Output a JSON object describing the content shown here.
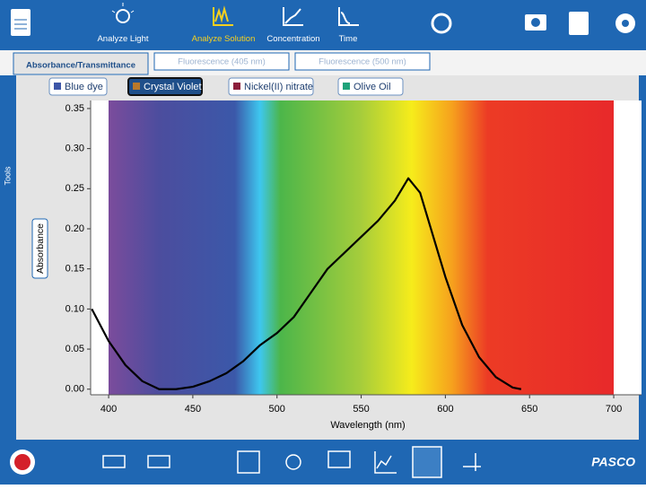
{
  "toolbar": {
    "items": [
      "Analyze Light",
      "Analyze Solution",
      "Concentration",
      "Time"
    ]
  },
  "tabs": [
    "Absorbance/Transmittance",
    "Fluorescence (405 nm)",
    "Fluorescence (500 nm)"
  ],
  "sidebar": {
    "label": "Tools"
  },
  "samples": [
    {
      "name": "Blue dye",
      "color": "#3d56a8"
    },
    {
      "name": "Crystal Violet",
      "color": "#b8782a"
    },
    {
      "name": "Nickel(II) nitrate",
      "color": "#8c1e3c"
    },
    {
      "name": "Olive Oil",
      "color": "#1fa37a"
    }
  ],
  "chart_data": {
    "type": "line",
    "x_label": "Wavelength (nm)",
    "y_label": "Absorbance",
    "xlim": [
      389.3,
      716.5
    ],
    "ylim": [
      -0.007,
      0.36
    ],
    "xticks": [
      400,
      450,
      500,
      550,
      600,
      650,
      700
    ],
    "yticks": [
      {
        "value": 0,
        "label": "0.00"
      },
      {
        "value": 0.05,
        "label": "0.05"
      },
      {
        "value": 0.1,
        "label": "0.10"
      },
      {
        "value": 0.15,
        "label": "0.15"
      },
      {
        "value": 0.2,
        "label": "0.20"
      },
      {
        "value": 0.25,
        "label": "0.25"
      },
      {
        "value": 0.3,
        "label": "0.30"
      },
      {
        "value": 0.35,
        "label": "0.35"
      }
    ],
    "series": [
      {
        "color": "#000000",
        "x": [
          390,
          395,
          400,
          410,
          420,
          430,
          440,
          450,
          460,
          470,
          480,
          490,
          500,
          510,
          520,
          530,
          540,
          550,
          560,
          570,
          578,
          585,
          590,
          600,
          610,
          620,
          630,
          640,
          645
        ],
        "values": [
          0.1,
          0.08,
          0.06,
          0.03,
          0.01,
          0.0,
          0.0,
          0.003,
          0.01,
          0.02,
          0.035,
          0.055,
          0.07,
          0.09,
          0.12,
          0.15,
          0.17,
          0.19,
          0.21,
          0.235,
          0.263,
          0.245,
          0.21,
          0.14,
          0.08,
          0.04,
          0.015,
          0.002,
          0.0
        ]
      }
    ]
  },
  "footer": {
    "logo": "PASCO"
  }
}
